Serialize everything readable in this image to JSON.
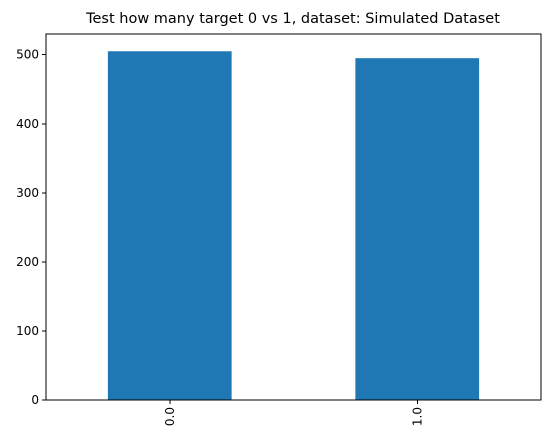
{
  "chart_data": {
    "type": "bar",
    "title": "Test how many target 0 vs 1, dataset: Simulated Dataset",
    "xlabel": "",
    "ylabel": "",
    "categories": [
      "0.0",
      "1.0"
    ],
    "values": [
      505,
      495
    ],
    "ylim": [
      0,
      530
    ],
    "yticks": [
      0,
      100,
      200,
      300,
      400,
      500
    ],
    "x_tick_rotation": 90,
    "grid": false,
    "legend": "none",
    "bar_color": "#1f77b4"
  }
}
